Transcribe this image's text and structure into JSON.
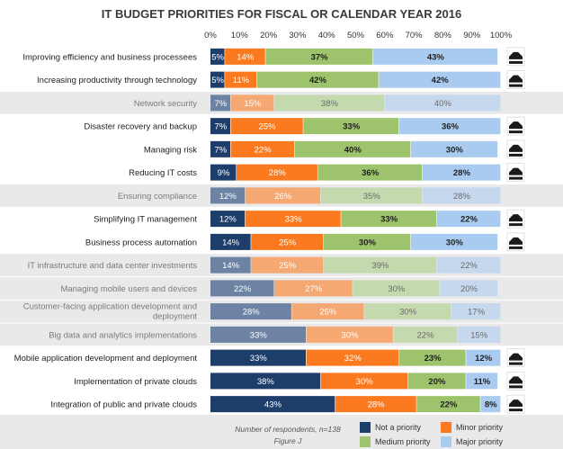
{
  "chart_data": {
    "type": "bar",
    "orientation": "horizontal",
    "stacked": true,
    "title": "IT BUDGET PRIORITIES FOR FISCAL OR CALENDAR YEAR 2016",
    "x_ticks": [
      "0%",
      "10%",
      "20%",
      "30%",
      "40%",
      "50%",
      "60%",
      "70%",
      "80%",
      "90%",
      "100%"
    ],
    "xlim": [
      0,
      100
    ],
    "series_names": [
      "Not a priority",
      "Minor priority",
      "Medium priority",
      "Major priority"
    ],
    "colors": {
      "Not a priority": "#1d3d6b",
      "Minor priority": "#fb7a1f",
      "Medium priority": "#9dc46c",
      "Major priority": "#a9cbef",
      "Not a priority_faded": "#6c83a3",
      "Minor priority_faded": "#f5a871",
      "Medium priority_faded": "#c5d9ae",
      "Major priority_faded": "#c6d8ee"
    },
    "categories": [
      {
        "label": "Improving efficiency and business processees",
        "faded": false,
        "trend_icon": true,
        "values": [
          5,
          14,
          37,
          43
        ]
      },
      {
        "label": "Increasing productivity through technology",
        "faded": false,
        "trend_icon": true,
        "values": [
          5,
          11,
          42,
          42
        ]
      },
      {
        "label": "Network security",
        "faded": true,
        "trend_icon": false,
        "values": [
          7,
          15,
          38,
          40
        ]
      },
      {
        "label": "Disaster recovery and backup",
        "faded": false,
        "trend_icon": true,
        "values": [
          7,
          25,
          33,
          36
        ]
      },
      {
        "label": "Managing risk",
        "faded": false,
        "trend_icon": true,
        "values": [
          7,
          22,
          40,
          30
        ]
      },
      {
        "label": "Reducing IT costs",
        "faded": false,
        "trend_icon": true,
        "values": [
          9,
          28,
          36,
          28
        ]
      },
      {
        "label": "Ensuring compliance",
        "faded": true,
        "trend_icon": false,
        "values": [
          12,
          26,
          35,
          28
        ]
      },
      {
        "label": "Simplifying IT management",
        "faded": false,
        "trend_icon": true,
        "values": [
          12,
          33,
          33,
          22
        ]
      },
      {
        "label": "Business process automation",
        "faded": false,
        "trend_icon": true,
        "values": [
          14,
          25,
          30,
          30
        ]
      },
      {
        "label": "IT infrastructure and data center investments",
        "faded": true,
        "trend_icon": false,
        "values": [
          14,
          25,
          39,
          22
        ]
      },
      {
        "label": "Managing mobile users and devices",
        "faded": true,
        "trend_icon": false,
        "values": [
          22,
          27,
          30,
          20
        ]
      },
      {
        "label": "Customer-facing application development and deployment",
        "faded": true,
        "trend_icon": false,
        "values": [
          28,
          25,
          30,
          17
        ]
      },
      {
        "label": "Big data and analytics implementations",
        "faded": true,
        "trend_icon": false,
        "values": [
          33,
          30,
          22,
          15
        ]
      },
      {
        "label": "Mobile application development and deployment",
        "faded": false,
        "trend_icon": true,
        "values": [
          33,
          32,
          23,
          12
        ]
      },
      {
        "label": "Implementation of private clouds",
        "faded": false,
        "trend_icon": true,
        "values": [
          38,
          30,
          20,
          11
        ]
      },
      {
        "label": "Integration of public and private clouds",
        "faded": false,
        "trend_icon": true,
        "values": [
          43,
          28,
          22,
          8
        ]
      }
    ],
    "note": "Number of respondents, n=138",
    "figure": "Figure J",
    "legend_position": "bottom-right"
  }
}
